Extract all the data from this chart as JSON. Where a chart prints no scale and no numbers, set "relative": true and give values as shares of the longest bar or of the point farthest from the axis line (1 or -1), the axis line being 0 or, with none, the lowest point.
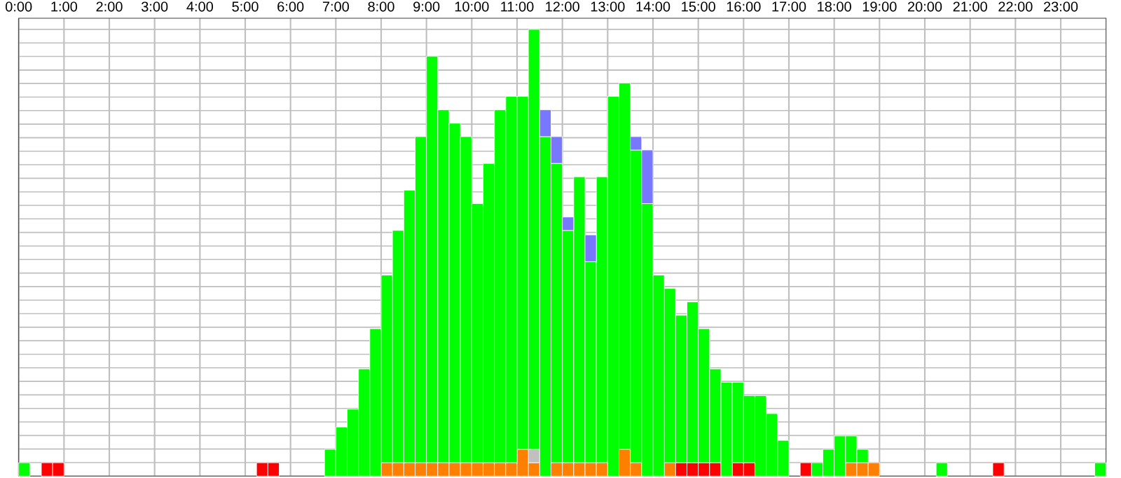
{
  "chart_data": {
    "type": "bar",
    "relative": true,
    "stacked": true,
    "grid": true,
    "tick_labels": "x",
    "xlim": [
      0,
      24
    ],
    "xticks": [
      {
        "value": 0,
        "label": "0:00"
      },
      {
        "value": 1,
        "label": "1:00"
      },
      {
        "value": 2,
        "label": "2:00"
      },
      {
        "value": 3,
        "label": "3:00"
      },
      {
        "value": 4,
        "label": "4:00"
      },
      {
        "value": 5,
        "label": "5:00"
      },
      {
        "value": 6,
        "label": "6:00"
      },
      {
        "value": 7,
        "label": "7:00"
      },
      {
        "value": 8,
        "label": "8:00"
      },
      {
        "value": 9,
        "label": "9:00"
      },
      {
        "value": 10,
        "label": "10:00"
      },
      {
        "value": 11,
        "label": "11:00"
      },
      {
        "value": 12,
        "label": "12:00"
      },
      {
        "value": 13,
        "label": "13:00"
      },
      {
        "value": 14,
        "label": "14:00"
      },
      {
        "value": 15,
        "label": "15:00"
      },
      {
        "value": 16,
        "label": "16:00"
      },
      {
        "value": 17,
        "label": "17:00"
      },
      {
        "value": 18,
        "label": "18:00"
      },
      {
        "value": 19,
        "label": "19:00"
      },
      {
        "value": 20,
        "label": "20:00"
      },
      {
        "value": 21,
        "label": "21:00"
      },
      {
        "value": 22,
        "label": "22:00"
      },
      {
        "value": 23,
        "label": "23:00"
      }
    ],
    "x": [
      0.125,
      0.375,
      0.625,
      0.875,
      1.125,
      1.375,
      1.625,
      1.875,
      2.125,
      2.375,
      2.625,
      2.875,
      3.125,
      3.375,
      3.625,
      3.875,
      4.125,
      4.375,
      4.625,
      4.875,
      5.125,
      5.375,
      5.625,
      5.875,
      6.125,
      6.375,
      6.625,
      6.875,
      7.125,
      7.375,
      7.625,
      7.875,
      8.125,
      8.375,
      8.625,
      8.875,
      9.125,
      9.375,
      9.625,
      9.875,
      10.125,
      10.375,
      10.625,
      10.875,
      11.125,
      11.375,
      11.625,
      11.875,
      12.125,
      12.375,
      12.625,
      12.875,
      13.125,
      13.375,
      13.625,
      13.875,
      14.125,
      14.375,
      14.625,
      14.875,
      15.125,
      15.375,
      15.625,
      15.875,
      16.125,
      16.375,
      16.625,
      16.875,
      17.125,
      17.375,
      17.625,
      17.875,
      18.125,
      18.375,
      18.625,
      18.875,
      19.125,
      19.375,
      19.625,
      19.875,
      20.125,
      20.375,
      20.625,
      20.875,
      21.125,
      21.375,
      21.625,
      21.875,
      22.125,
      22.375,
      22.625,
      22.875,
      23.125,
      23.375,
      23.625,
      23.875
    ],
    "series": [
      {
        "color": "#ff8000",
        "values": [
          0,
          0,
          0,
          0,
          0,
          0,
          0,
          0,
          0,
          0,
          0,
          0,
          0,
          0,
          0,
          0,
          0,
          0,
          0,
          0,
          0,
          0,
          0,
          0,
          0,
          0,
          0,
          0,
          0,
          0,
          0,
          0,
          0.03,
          0.03,
          0.03,
          0.03,
          0.03,
          0.03,
          0.03,
          0.03,
          0.03,
          0.03,
          0.03,
          0.03,
          0.06,
          0.03,
          0,
          0.03,
          0.03,
          0.03,
          0.03,
          0.03,
          0,
          0.06,
          0.03,
          0,
          0,
          0.03,
          0,
          0,
          0,
          0,
          0,
          0,
          0,
          0,
          0,
          0,
          0,
          0,
          0,
          0,
          0,
          0.03,
          0.03,
          0.03,
          0,
          0,
          0,
          0,
          0,
          0,
          0,
          0,
          0,
          0,
          0,
          0,
          0,
          0,
          0,
          0,
          0,
          0,
          0,
          0
        ]
      },
      {
        "color": "#ff0000",
        "values": [
          0,
          0,
          0.03,
          0.03,
          0,
          0,
          0,
          0,
          0,
          0,
          0,
          0,
          0,
          0,
          0,
          0,
          0,
          0,
          0,
          0,
          0,
          0.03,
          0.03,
          0,
          0,
          0,
          0,
          0,
          0,
          0,
          0,
          0,
          0,
          0,
          0,
          0,
          0,
          0,
          0,
          0,
          0,
          0,
          0,
          0,
          0,
          0,
          0,
          0,
          0,
          0,
          0,
          0,
          0,
          0,
          0,
          0,
          0,
          0,
          0.03,
          0.03,
          0.03,
          0.03,
          0,
          0.03,
          0.03,
          0,
          0,
          0,
          0,
          0.03,
          0,
          0,
          0,
          0,
          0,
          0,
          0,
          0,
          0,
          0,
          0,
          0,
          0,
          0,
          0,
          0,
          0.03,
          0,
          0,
          0,
          0,
          0,
          0,
          0,
          0,
          0
        ]
      },
      {
        "color": "#c0c0c0",
        "values": [
          0,
          0,
          0,
          0,
          0,
          0,
          0,
          0,
          0,
          0,
          0,
          0,
          0,
          0,
          0,
          0,
          0,
          0,
          0,
          0,
          0,
          0,
          0,
          0,
          0,
          0,
          0,
          0,
          0,
          0,
          0,
          0,
          0,
          0,
          0,
          0,
          0,
          0,
          0,
          0,
          0,
          0,
          0,
          0,
          0,
          0.03,
          0,
          0,
          0,
          0,
          0,
          0,
          0,
          0,
          0,
          0,
          0,
          0,
          0,
          0,
          0,
          0,
          0,
          0,
          0,
          0,
          0,
          0,
          0,
          0,
          0,
          0,
          0,
          0,
          0,
          0,
          0,
          0,
          0,
          0,
          0,
          0,
          0,
          0,
          0,
          0,
          0,
          0,
          0,
          0,
          0,
          0,
          0,
          0,
          0,
          0
        ]
      },
      {
        "color": "#00ff00",
        "values": [
          0.03,
          0,
          0,
          0,
          0,
          0,
          0,
          0,
          0,
          0,
          0,
          0,
          0,
          0,
          0,
          0,
          0,
          0,
          0,
          0,
          0,
          0,
          0,
          0,
          0,
          0,
          0,
          0.06,
          0.11,
          0.15,
          0.24,
          0.33,
          0.42,
          0.52,
          0.61,
          0.73,
          0.91,
          0.79,
          0.76,
          0.73,
          0.58,
          0.67,
          0.79,
          0.82,
          0.79,
          0.94,
          0.76,
          0.67,
          0.52,
          0.64,
          0.45,
          0.64,
          0.85,
          0.82,
          0.7,
          0.61,
          0.45,
          0.39,
          0.33,
          0.36,
          0.3,
          0.21,
          0.21,
          0.18,
          0.15,
          0.18,
          0.14,
          0.08,
          0,
          0,
          0.03,
          0.06,
          0.09,
          0.06,
          0.03,
          0,
          0,
          0,
          0,
          0,
          0,
          0.03,
          0,
          0,
          0,
          0,
          0,
          0,
          0,
          0,
          0,
          0,
          0,
          0,
          0,
          0.03
        ]
      },
      {
        "color": "#7878ff",
        "values": [
          0,
          0,
          0,
          0,
          0,
          0,
          0,
          0,
          0,
          0,
          0,
          0,
          0,
          0,
          0,
          0,
          0,
          0,
          0,
          0,
          0,
          0,
          0,
          0,
          0,
          0,
          0,
          0,
          0,
          0,
          0,
          0,
          0,
          0,
          0,
          0,
          0,
          0,
          0,
          0,
          0,
          0,
          0,
          0,
          0,
          0,
          0.06,
          0.06,
          0.03,
          0,
          0.06,
          0,
          0,
          0,
          0.03,
          0.12,
          0,
          0,
          0,
          0,
          0,
          0,
          0,
          0,
          0,
          0,
          0,
          0,
          0,
          0,
          0,
          0,
          0,
          0,
          0,
          0,
          0,
          0,
          0,
          0,
          0,
          0,
          0,
          0,
          0,
          0,
          0,
          0,
          0,
          0,
          0,
          0,
          0,
          0,
          0,
          0
        ]
      }
    ]
  }
}
